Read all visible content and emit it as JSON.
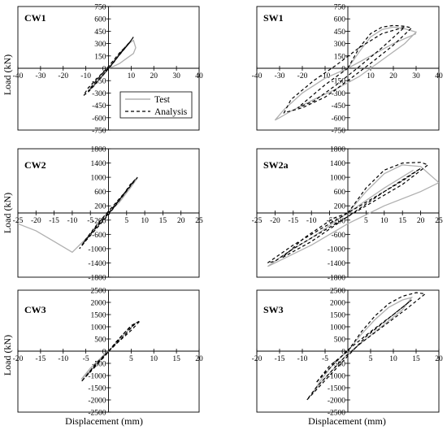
{
  "figure": {
    "xlabel": "Displacement (mm)",
    "ylabel": "Load (kN)",
    "legend": {
      "test_label": "Test",
      "analysis_label": "Analysis",
      "placement": "lower-right of CW1 panel"
    },
    "colors": {
      "test": "#b0b0b0",
      "analysis": "#000000"
    }
  },
  "chart_data": [
    {
      "id": "CW1",
      "type": "line",
      "title": "CW1",
      "xlim": [
        -40,
        40
      ],
      "ylim": [
        -750,
        750
      ],
      "xticks": [
        -40,
        -30,
        -20,
        -10,
        0,
        10,
        20,
        30,
        40
      ],
      "yticks": [
        -750,
        -600,
        -450,
        -300,
        -150,
        0,
        150,
        300,
        450,
        600,
        750
      ],
      "ylabel": "Load (kN)",
      "xlabel": "",
      "series": [
        {
          "name": "Test",
          "style": "solid-gray",
          "x": [
            0,
            2,
            4,
            6,
            8,
            10,
            11,
            12,
            11,
            8,
            5,
            2,
            0,
            -2,
            -4,
            -6,
            -8,
            -9,
            -7,
            -4,
            -1,
            0
          ],
          "y": [
            0,
            80,
            150,
            220,
            280,
            320,
            340,
            250,
            180,
            120,
            60,
            20,
            0,
            -50,
            -110,
            -170,
            -230,
            -280,
            -230,
            -140,
            -40,
            0
          ]
        },
        {
          "name": "Analysis",
          "style": "dashed-black",
          "x": [
            0,
            3,
            6,
            9,
            11,
            9,
            5,
            1,
            -3,
            -6,
            -9,
            -11,
            -9,
            -5,
            -1,
            2,
            5,
            8,
            10,
            6,
            2,
            -2,
            -6,
            -9,
            -6,
            -2,
            0
          ],
          "y": [
            0,
            100,
            200,
            300,
            380,
            300,
            170,
            30,
            -100,
            -200,
            -290,
            -330,
            -240,
            -120,
            -10,
            90,
            190,
            270,
            340,
            210,
            60,
            -70,
            -190,
            -280,
            -170,
            -40,
            0
          ]
        }
      ]
    },
    {
      "id": "SW1",
      "type": "line",
      "title": "SW1",
      "xlim": [
        -40,
        40
      ],
      "ylim": [
        -750,
        750
      ],
      "xticks": [
        -40,
        -30,
        -20,
        -10,
        0,
        10,
        20,
        30,
        40
      ],
      "yticks": [
        -750,
        -600,
        -450,
        -300,
        -150,
        0,
        150,
        300,
        450,
        600,
        750
      ],
      "ylabel": "Load (kN)",
      "xlabel": "",
      "series": [
        {
          "name": "Test",
          "style": "solid-gray",
          "x": [
            0,
            5,
            10,
            15,
            20,
            25,
            30,
            25,
            15,
            5,
            -5,
            -15,
            -25,
            -30,
            -32,
            -28,
            -20,
            -10,
            0,
            10,
            20,
            30
          ],
          "y": [
            0,
            200,
            380,
            470,
            500,
            480,
            440,
            300,
            100,
            -100,
            -250,
            -380,
            -520,
            -600,
            -630,
            -500,
            -300,
            -120,
            0,
            150,
            300,
            420
          ]
        },
        {
          "name": "Analysis",
          "style": "dashed-black",
          "x": [
            0,
            5,
            10,
            15,
            20,
            25,
            28,
            20,
            10,
            0,
            -10,
            -20,
            -28,
            -25,
            -15,
            -5,
            5,
            15,
            25,
            15,
            5,
            -5,
            -15,
            -22,
            -10,
            0
          ],
          "y": [
            0,
            250,
            420,
            500,
            520,
            510,
            490,
            280,
            60,
            -150,
            -350,
            -480,
            -540,
            -380,
            -150,
            40,
            250,
            420,
            500,
            250,
            20,
            -200,
            -400,
            -480,
            -200,
            0
          ]
        }
      ]
    },
    {
      "id": "CW2",
      "type": "line",
      "title": "CW2",
      "xlim": [
        -25,
        25
      ],
      "ylim": [
        -1800,
        1800
      ],
      "xticks": [
        -25,
        -20,
        -15,
        -10,
        -5,
        0,
        5,
        10,
        15,
        20,
        25
      ],
      "yticks": [
        -1800,
        -1400,
        -1000,
        -600,
        -200,
        200,
        600,
        1000,
        1400,
        1800
      ],
      "ylabel": "Load (kN)",
      "xlabel": "",
      "series": [
        {
          "name": "Test",
          "style": "solid-gray",
          "x": [
            -25,
            -20,
            -15,
            -10,
            -8,
            -5,
            -2,
            0,
            2,
            5,
            7,
            8,
            6,
            3,
            0
          ],
          "y": [
            -300,
            -500,
            -800,
            -1100,
            -900,
            -600,
            -250,
            0,
            250,
            600,
            850,
            980,
            700,
            300,
            0
          ]
        },
        {
          "name": "Analysis",
          "style": "dashed-black",
          "x": [
            0,
            2,
            4,
            6,
            8,
            6,
            3,
            0,
            -3,
            -6,
            -8,
            -6,
            -3,
            0,
            3,
            6,
            7,
            4,
            1,
            -2,
            -5,
            -7,
            -4,
            -1,
            0
          ],
          "y": [
            0,
            250,
            500,
            800,
            1000,
            750,
            350,
            -50,
            -400,
            -750,
            -1000,
            -700,
            -300,
            50,
            400,
            750,
            900,
            500,
            100,
            -250,
            -600,
            -850,
            -450,
            -80,
            0
          ]
        }
      ]
    },
    {
      "id": "SW2a",
      "type": "line",
      "title": "SW2a",
      "xlim": [
        -25,
        25
      ],
      "ylim": [
        -1800,
        1800
      ],
      "xticks": [
        -25,
        -20,
        -15,
        -10,
        -5,
        0,
        5,
        10,
        15,
        20,
        25
      ],
      "yticks": [
        -1800,
        -1400,
        -1000,
        -600,
        -200,
        200,
        600,
        1000,
        1400,
        1800
      ],
      "ylabel": "Load (kN)",
      "xlabel": "",
      "series": [
        {
          "name": "Test",
          "style": "solid-gray",
          "x": [
            0,
            5,
            10,
            15,
            20,
            25,
            20,
            10,
            0,
            -10,
            -20,
            -22,
            -18,
            -10,
            0,
            10,
            18
          ],
          "y": [
            0,
            600,
            1100,
            1350,
            1300,
            850,
            600,
            200,
            -300,
            -900,
            -1400,
            -1500,
            -1200,
            -700,
            0,
            700,
            1200
          ]
        },
        {
          "name": "Analysis",
          "style": "dashed-black",
          "x": [
            0,
            5,
            10,
            15,
            20,
            22,
            15,
            5,
            -5,
            -15,
            -20,
            -22,
            -15,
            -5,
            5,
            15,
            20,
            10,
            0,
            -10,
            -18,
            -12,
            -4,
            0
          ],
          "y": [
            0,
            700,
            1200,
            1400,
            1420,
            1350,
            800,
            200,
            -400,
            -1000,
            -1350,
            -1400,
            -900,
            -300,
            300,
            900,
            1250,
            600,
            -100,
            -800,
            -1250,
            -700,
            -150,
            0
          ]
        }
      ]
    },
    {
      "id": "CW3",
      "type": "line",
      "title": "CW3",
      "xlim": [
        -20,
        20
      ],
      "ylim": [
        -2500,
        2500
      ],
      "xticks": [
        -20,
        -15,
        -10,
        -5,
        0,
        5,
        10,
        15,
        20
      ],
      "yticks": [
        -2500,
        -2000,
        -1500,
        -1000,
        -500,
        0,
        500,
        1000,
        1500,
        2000,
        2500
      ],
      "ylabel": "Load (kN)",
      "xlabel": "Displacement (mm)",
      "series": [
        {
          "name": "Test",
          "style": "solid-gray",
          "x": [
            0,
            2,
            4,
            6,
            4,
            1,
            -2,
            -4,
            -6,
            -4,
            -1,
            0
          ],
          "y": [
            0,
            400,
            800,
            1150,
            800,
            200,
            -400,
            -800,
            -1150,
            -700,
            -150,
            0
          ]
        },
        {
          "name": "Analysis",
          "style": "dashed-black",
          "x": [
            0,
            2,
            4,
            6,
            7,
            5,
            2,
            -1,
            -3,
            -5,
            -6,
            -4,
            -1,
            1,
            3,
            5,
            6,
            3,
            0,
            -3,
            -5,
            -3,
            0
          ],
          "y": [
            0,
            450,
            850,
            1150,
            1250,
            850,
            350,
            -200,
            -650,
            -1050,
            -1250,
            -800,
            -250,
            200,
            650,
            1050,
            1150,
            550,
            0,
            -600,
            -1050,
            -550,
            0
          ]
        }
      ]
    },
    {
      "id": "SW3",
      "type": "line",
      "title": "SW3",
      "xlim": [
        -20,
        20
      ],
      "ylim": [
        -2500,
        2500
      ],
      "xticks": [
        -20,
        -15,
        -10,
        -5,
        0,
        5,
        10,
        15,
        20
      ],
      "yticks": [
        -2500,
        -2000,
        -1500,
        -1000,
        -500,
        0,
        500,
        1000,
        1500,
        2000,
        2500
      ],
      "ylabel": "",
      "xlabel": "Displacement (mm)",
      "series": [
        {
          "name": "Test",
          "style": "solid-gray",
          "x": [
            0,
            3,
            6,
            9,
            12,
            14,
            12,
            8,
            4,
            0,
            -3,
            -6,
            -8,
            -6,
            -3,
            0
          ],
          "y": [
            0,
            700,
            1300,
            1800,
            2100,
            2200,
            1700,
            1100,
            500,
            -100,
            -700,
            -1300,
            -1800,
            -1200,
            -500,
            0
          ]
        },
        {
          "name": "Analysis",
          "style": "dashed-black",
          "x": [
            0,
            3,
            6,
            9,
            12,
            15,
            17,
            13,
            8,
            3,
            -1,
            -4,
            -7,
            -9,
            -6,
            -2,
            1,
            4,
            8,
            12,
            14,
            10,
            5,
            0,
            -4,
            -7,
            -4,
            0
          ],
          "y": [
            0,
            800,
            1450,
            1950,
            2250,
            2400,
            2350,
            1750,
            1050,
            350,
            -300,
            -900,
            -1500,
            -2000,
            -1400,
            -600,
            0,
            600,
            1200,
            1800,
            2100,
            1500,
            800,
            50,
            -700,
            -1300,
            -600,
            0
          ]
        }
      ]
    }
  ]
}
